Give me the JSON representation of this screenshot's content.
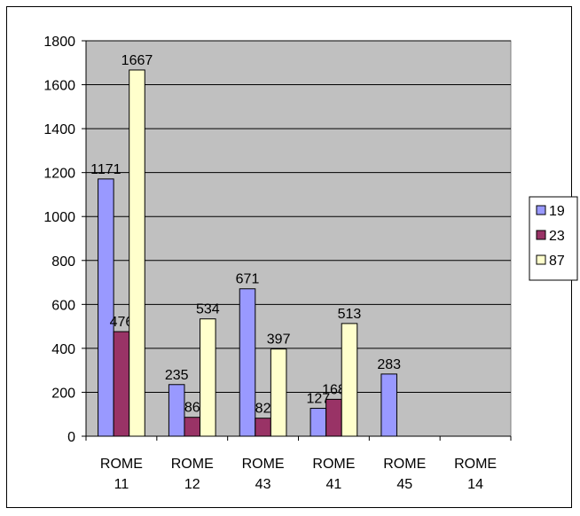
{
  "chart_data": {
    "type": "bar",
    "categories": [
      [
        "ROME",
        "11"
      ],
      [
        "ROME",
        "12"
      ],
      [
        "ROME",
        "43"
      ],
      [
        "ROME",
        "41"
      ],
      [
        "ROME",
        "45"
      ],
      [
        "ROME",
        "14"
      ]
    ],
    "series": [
      {
        "name": "19",
        "color": "#9999ff",
        "values": [
          1171,
          235,
          671,
          127,
          283,
          null
        ]
      },
      {
        "name": "23",
        "color": "#993366",
        "values": [
          476,
          86,
          82,
          168,
          null,
          null
        ]
      },
      {
        "name": "87",
        "color": "#ffffcc",
        "values": [
          1667,
          534,
          397,
          513,
          null,
          null
        ]
      }
    ],
    "ylim": [
      0,
      1800
    ],
    "yticks": [
      0,
      200,
      400,
      600,
      800,
      1000,
      1200,
      1400,
      1600,
      1800
    ],
    "grid": true,
    "plot_background": "#c0c0c0",
    "legend_position": "right",
    "title": "",
    "xlabel": "",
    "ylabel": ""
  }
}
